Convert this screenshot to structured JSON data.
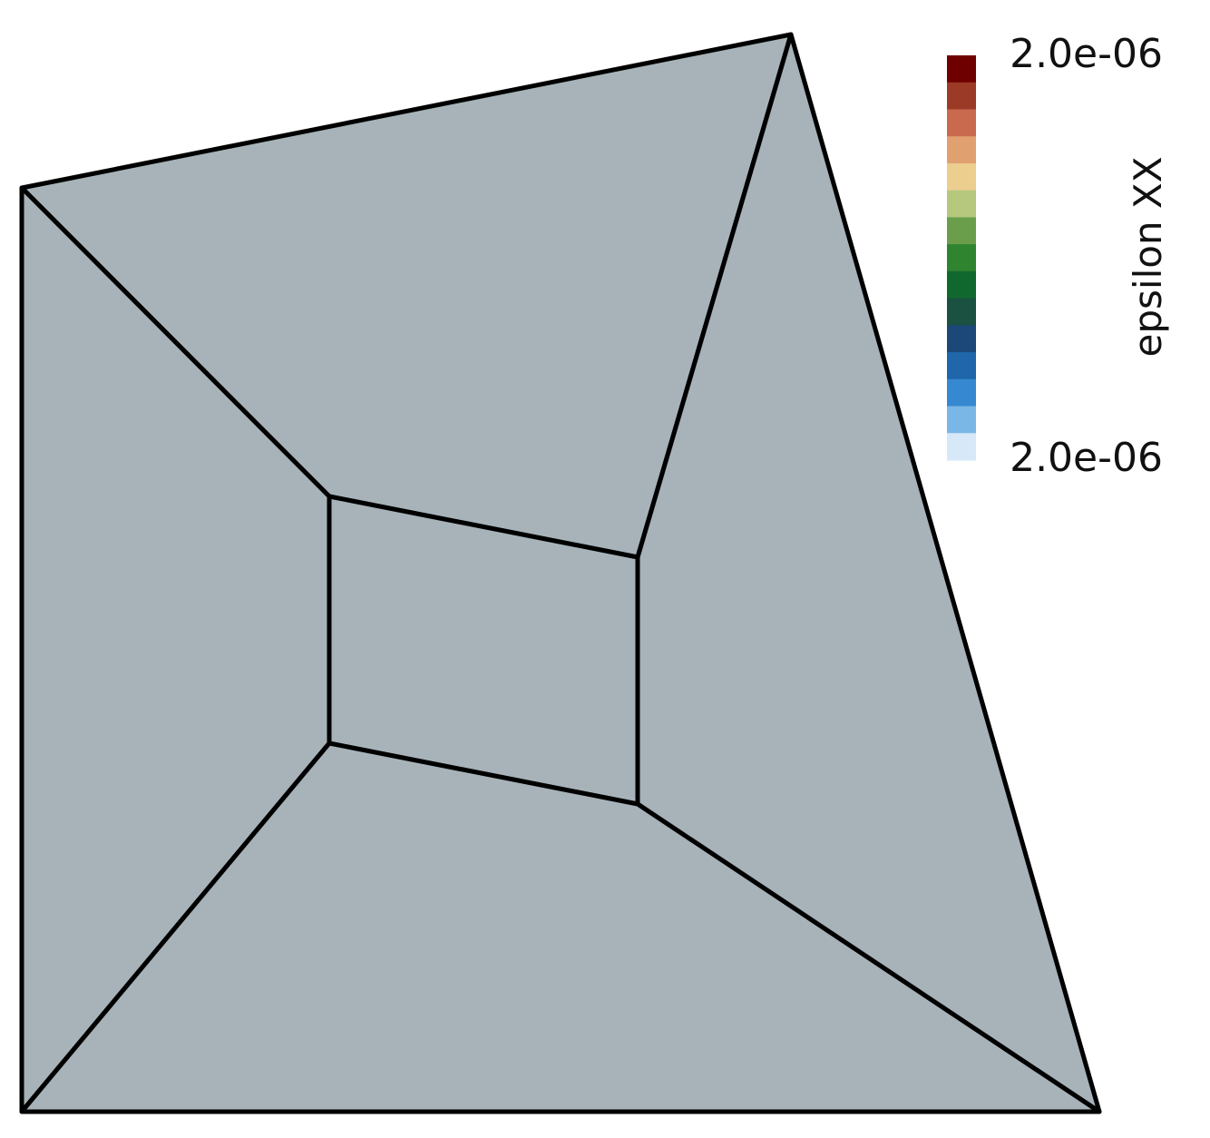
{
  "mesh": {
    "fill_color": "#a7b3b9",
    "edge_color": "#000000",
    "element_count": 5
  },
  "colorbar": {
    "title": "epsilon XX",
    "max_label": "2.0e-06",
    "min_label": "2.0e-06",
    "colors_top_to_bottom": [
      "#6e0000",
      "#9b3a27",
      "#c96a4f",
      "#e0a070",
      "#ecce8f",
      "#b5c87e",
      "#6a9e4b",
      "#2f8430",
      "#11682e",
      "#1a5140",
      "#1b4878",
      "#1f66aa",
      "#3689d0",
      "#7ab7e6",
      "#d7e8f8"
    ]
  }
}
